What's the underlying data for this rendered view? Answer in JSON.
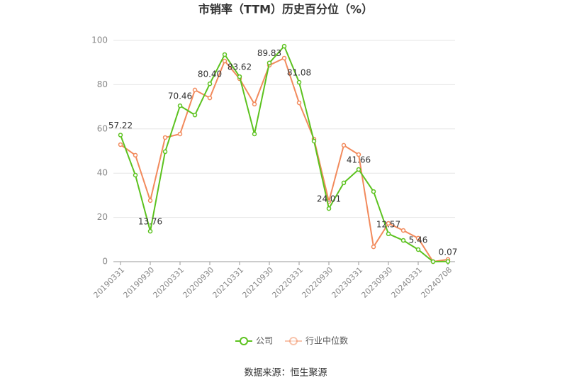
{
  "chart_data": {
    "type": "line",
    "title": "市销率（TTM）历史百分位（%）",
    "source": "数据来源：恒生聚源",
    "categories": [
      "20190331",
      null,
      "20190930",
      null,
      "20200331",
      null,
      "20200930",
      null,
      "20210331",
      null,
      "20210930",
      null,
      "20220331",
      null,
      "20220930",
      null,
      "20230331",
      null,
      "20230930",
      null,
      "20240331",
      null,
      "20240708"
    ],
    "series": [
      {
        "name": "公司",
        "color": "#5cc21f",
        "values": [
          57.22,
          39.1,
          13.76,
          49.7,
          70.46,
          66.3,
          80.4,
          93.6,
          83.62,
          57.7,
          89.83,
          97.4,
          81.08,
          54.5,
          24.01,
          35.6,
          41.66,
          31.7,
          12.57,
          9.6,
          5.46,
          0,
          0.07
        ],
        "value_labels": [
          "57.22",
          null,
          "13.76",
          null,
          "70.46",
          null,
          "80.40",
          null,
          "83.62",
          null,
          "89.83",
          null,
          "81.08",
          null,
          "24.01",
          null,
          "41.66",
          null,
          "12.57",
          null,
          "5.46",
          null,
          "0.07"
        ]
      },
      {
        "name": "行业中位数",
        "color": "#f28a5c",
        "values": [
          52.9,
          48.1,
          27.6,
          56.1,
          57.7,
          77.6,
          74.0,
          90.7,
          82.7,
          71.2,
          88.8,
          92.0,
          71.8,
          55.4,
          27.2,
          52.6,
          48.4,
          6.7,
          17.3,
          14.1,
          10.6,
          0,
          1.0
        ]
      }
    ],
    "ylim": [
      0,
      100
    ],
    "yticks": [
      0,
      20,
      40,
      60,
      80,
      100
    ],
    "grid": true,
    "legend": "bottom"
  }
}
